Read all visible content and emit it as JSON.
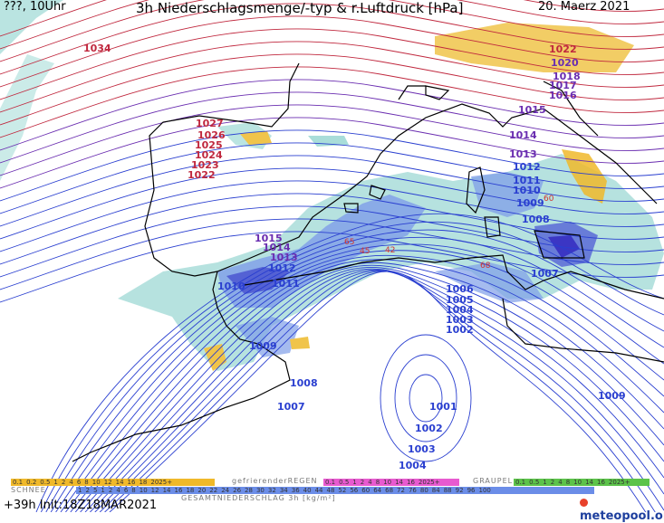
{
  "header": {
    "left": "???, 10Uhr",
    "title": "3h Niederschlagsmenge/-typ & r.Luftdruck [hPa]",
    "date": "20. Maerz 2021"
  },
  "footer": {
    "run": "+39h Init:18Z18MAR2021",
    "brand": "meteopool.org"
  },
  "legends": {
    "snow": {
      "caption": "SCHNEE",
      "values": [
        "0.1",
        "0.2",
        "0.5",
        "1",
        "2",
        "4",
        "6",
        "8",
        "10",
        "12",
        "14",
        "16",
        "18",
        "2025+"
      ]
    },
    "freezing_rain": {
      "caption": "gefrierenderREGEN",
      "values": [
        "0.1",
        "0.5",
        "1",
        "2",
        "4",
        "8",
        "10",
        "14",
        "16",
        "2025+"
      ]
    },
    "graupel": {
      "caption": "GRAUPEL",
      "values": [
        "0.1",
        "0.5",
        "1",
        "2",
        "4",
        "8",
        "10",
        "14",
        "16",
        "2025+"
      ]
    },
    "total": {
      "caption": "GESAMTNIEDERSCHLAG 3h [kg/m²]",
      "values": [
        "1",
        "2",
        "5",
        "1",
        "2",
        "4",
        "6",
        "8",
        "10",
        "12",
        "14",
        "16",
        "18",
        "20",
        "22",
        "24",
        "26",
        "28",
        "30",
        "32",
        "34",
        "36",
        "40",
        "44",
        "48",
        "52",
        "56",
        "60",
        "64",
        "68",
        "72",
        "76",
        "80",
        "84",
        "88",
        "92",
        "96",
        "100"
      ]
    }
  },
  "colors": {
    "high_isobar": "#c0283e",
    "low_isobar": "#2a3fd0",
    "mid_isobar": "#6a2db0",
    "rain_light": "#a9ddd9",
    "rain_mid": "#6b8de8",
    "rain_heavy": "#3b36c4",
    "snow": "#f0b92a",
    "coast": "#000000"
  },
  "isobar_labels": [
    {
      "text": "1034",
      "color": "high"
    },
    {
      "text": "1027",
      "color": "high"
    },
    {
      "text": "1026",
      "color": "high"
    },
    {
      "text": "1025",
      "color": "high"
    },
    {
      "text": "1024",
      "color": "high"
    },
    {
      "text": "1023",
      "color": "high"
    },
    {
      "text": "1022",
      "color": "high"
    },
    {
      "text": "1022",
      "color": "high"
    },
    {
      "text": "1020",
      "color": "mid"
    },
    {
      "text": "1018",
      "color": "mid"
    },
    {
      "text": "1017",
      "color": "mid"
    },
    {
      "text": "1016",
      "color": "mid"
    },
    {
      "text": "1015",
      "color": "mid"
    },
    {
      "text": "1014",
      "color": "mid"
    },
    {
      "text": "1013",
      "color": "mid"
    },
    {
      "text": "1012",
      "color": "low"
    },
    {
      "text": "1011",
      "color": "low"
    },
    {
      "text": "1010",
      "color": "low"
    },
    {
      "text": "1009",
      "color": "low"
    },
    {
      "text": "1008",
      "color": "low"
    },
    {
      "text": "1007",
      "color": "low"
    },
    {
      "text": "1015",
      "color": "mid"
    },
    {
      "text": "1014",
      "color": "mid"
    },
    {
      "text": "1013",
      "color": "mid"
    },
    {
      "text": "1012",
      "color": "low"
    },
    {
      "text": "1011",
      "color": "low"
    },
    {
      "text": "1010",
      "color": "low"
    },
    {
      "text": "1006",
      "color": "low"
    },
    {
      "text": "1005",
      "color": "low"
    },
    {
      "text": "1004",
      "color": "low"
    },
    {
      "text": "1003",
      "color": "low"
    },
    {
      "text": "1002",
      "color": "low"
    },
    {
      "text": "1009",
      "color": "low"
    },
    {
      "text": "1008",
      "color": "low"
    },
    {
      "text": "1007",
      "color": "low"
    },
    {
      "text": "1001",
      "color": "low"
    },
    {
      "text": "1002",
      "color": "low"
    },
    {
      "text": "1003",
      "color": "low"
    },
    {
      "text": "1004",
      "color": "low"
    },
    {
      "text": "1009",
      "color": "low"
    }
  ],
  "rain_labels": [
    "65",
    "45",
    "42",
    "68",
    "60"
  ]
}
